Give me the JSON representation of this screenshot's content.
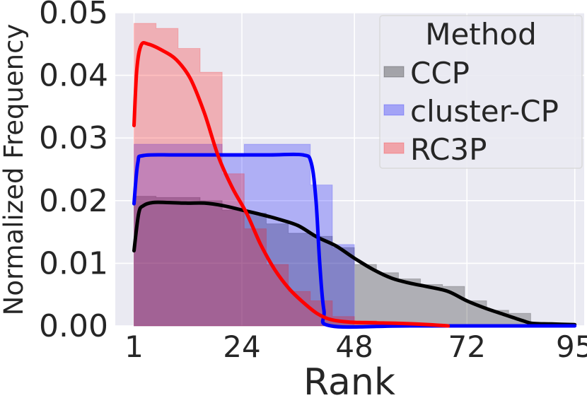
{
  "chart_data": {
    "type": "histogram_kde",
    "xlabel": "Rank",
    "ylabel": "Normalized Frequency",
    "xlim": [
      -3,
      97
    ],
    "ylim": [
      0,
      0.05
    ],
    "xticks": [
      1,
      24,
      48,
      72,
      95
    ],
    "yticks": [
      0.0,
      0.01,
      0.02,
      0.03,
      0.04,
      0.05
    ],
    "ytick_labels": [
      "0.00",
      "0.01",
      "0.02",
      "0.03",
      "0.04",
      "0.05"
    ],
    "grid": true,
    "legend": {
      "title": "Method",
      "placement": "top-right"
    },
    "bin_edges": [
      1,
      5.7,
      10.4,
      15.1,
      19.8,
      24.5,
      29.2,
      33.9,
      38.6,
      43.3,
      48.0,
      52.7,
      57.4,
      62.1,
      66.8,
      71.5,
      76.2,
      80.9,
      85.6,
      90.3,
      95
    ],
    "series": [
      {
        "name": "CCP",
        "color": "#000000",
        "hist": [
          0.0207,
          0.0205,
          0.0205,
          0.02,
          0.0185,
          0.018,
          0.0163,
          0.0148,
          0.0143,
          0.0125,
          0.0098,
          0.0085,
          0.0075,
          0.0066,
          0.0063,
          0.004,
          0.0025,
          0.002,
          0.0005,
          0.0002
        ],
        "kde": [
          [
            1,
            0.012
          ],
          [
            2,
            0.018
          ],
          [
            3,
            0.0192
          ],
          [
            5,
            0.0197
          ],
          [
            8,
            0.0197
          ],
          [
            12,
            0.0196
          ],
          [
            16,
            0.0196
          ],
          [
            20,
            0.0192
          ],
          [
            24,
            0.0185
          ],
          [
            28,
            0.0178
          ],
          [
            32,
            0.017
          ],
          [
            36,
            0.016
          ],
          [
            40,
            0.0142
          ],
          [
            44,
            0.0128
          ],
          [
            48,
            0.0108
          ],
          [
            52,
            0.009
          ],
          [
            56,
            0.0076
          ],
          [
            60,
            0.0068
          ],
          [
            64,
            0.0062
          ],
          [
            68,
            0.0055
          ],
          [
            72,
            0.004
          ],
          [
            76,
            0.0028
          ],
          [
            80,
            0.0018
          ],
          [
            84,
            0.0008
          ],
          [
            86,
            0.0004
          ],
          [
            90,
            0.0003
          ],
          [
            95,
            0.0002
          ]
        ]
      },
      {
        "name": "cluster-CP",
        "color": "#0000ff",
        "hist": [
          0.029,
          0.029,
          0.029,
          0.029,
          0.027,
          0.029,
          0.029,
          0.029,
          0.0225,
          0.013,
          0.0,
          0.0,
          0.0,
          0.0,
          0.0,
          0.0,
          0.0,
          0.0,
          0.0,
          0.0
        ],
        "kde": [
          [
            1,
            0.0195
          ],
          [
            1.8,
            0.026
          ],
          [
            3,
            0.0272
          ],
          [
            10,
            0.0273
          ],
          [
            20,
            0.0273
          ],
          [
            30,
            0.0273
          ],
          [
            37,
            0.0273
          ],
          [
            38.8,
            0.026
          ],
          [
            39.8,
            0.02
          ],
          [
            40.6,
            0.01
          ],
          [
            41.5,
            0.0025
          ],
          [
            43,
            0.0
          ],
          [
            60,
            0.0
          ],
          [
            95,
            0.0
          ]
        ]
      },
      {
        "name": "RC3P",
        "color": "#ff0000",
        "hist": [
          0.0483,
          0.0475,
          0.0443,
          0.0405,
          0.0243,
          0.0155,
          0.0098,
          0.0055,
          0.004,
          0.0015,
          0.0008,
          0.0005,
          0.0005,
          0.0003,
          0.0002,
          0.0,
          0.0,
          0.0,
          0.0,
          0.0
        ],
        "kde": [
          [
            1,
            0.032
          ],
          [
            1.6,
            0.041
          ],
          [
            2.5,
            0.0448
          ],
          [
            4,
            0.045
          ],
          [
            7,
            0.044
          ],
          [
            10,
            0.0425
          ],
          [
            13,
            0.0395
          ],
          [
            16,
            0.034
          ],
          [
            19,
            0.027
          ],
          [
            22,
            0.022
          ],
          [
            25,
            0.018
          ],
          [
            28,
            0.013
          ],
          [
            31,
            0.009
          ],
          [
            34,
            0.006
          ],
          [
            37,
            0.0038
          ],
          [
            40,
            0.002
          ],
          [
            43,
            0.001
          ],
          [
            47,
            0.0006
          ],
          [
            52,
            0.0005
          ],
          [
            58,
            0.0004
          ],
          [
            64,
            0.0002
          ],
          [
            68,
            0.0
          ]
        ]
      }
    ]
  }
}
